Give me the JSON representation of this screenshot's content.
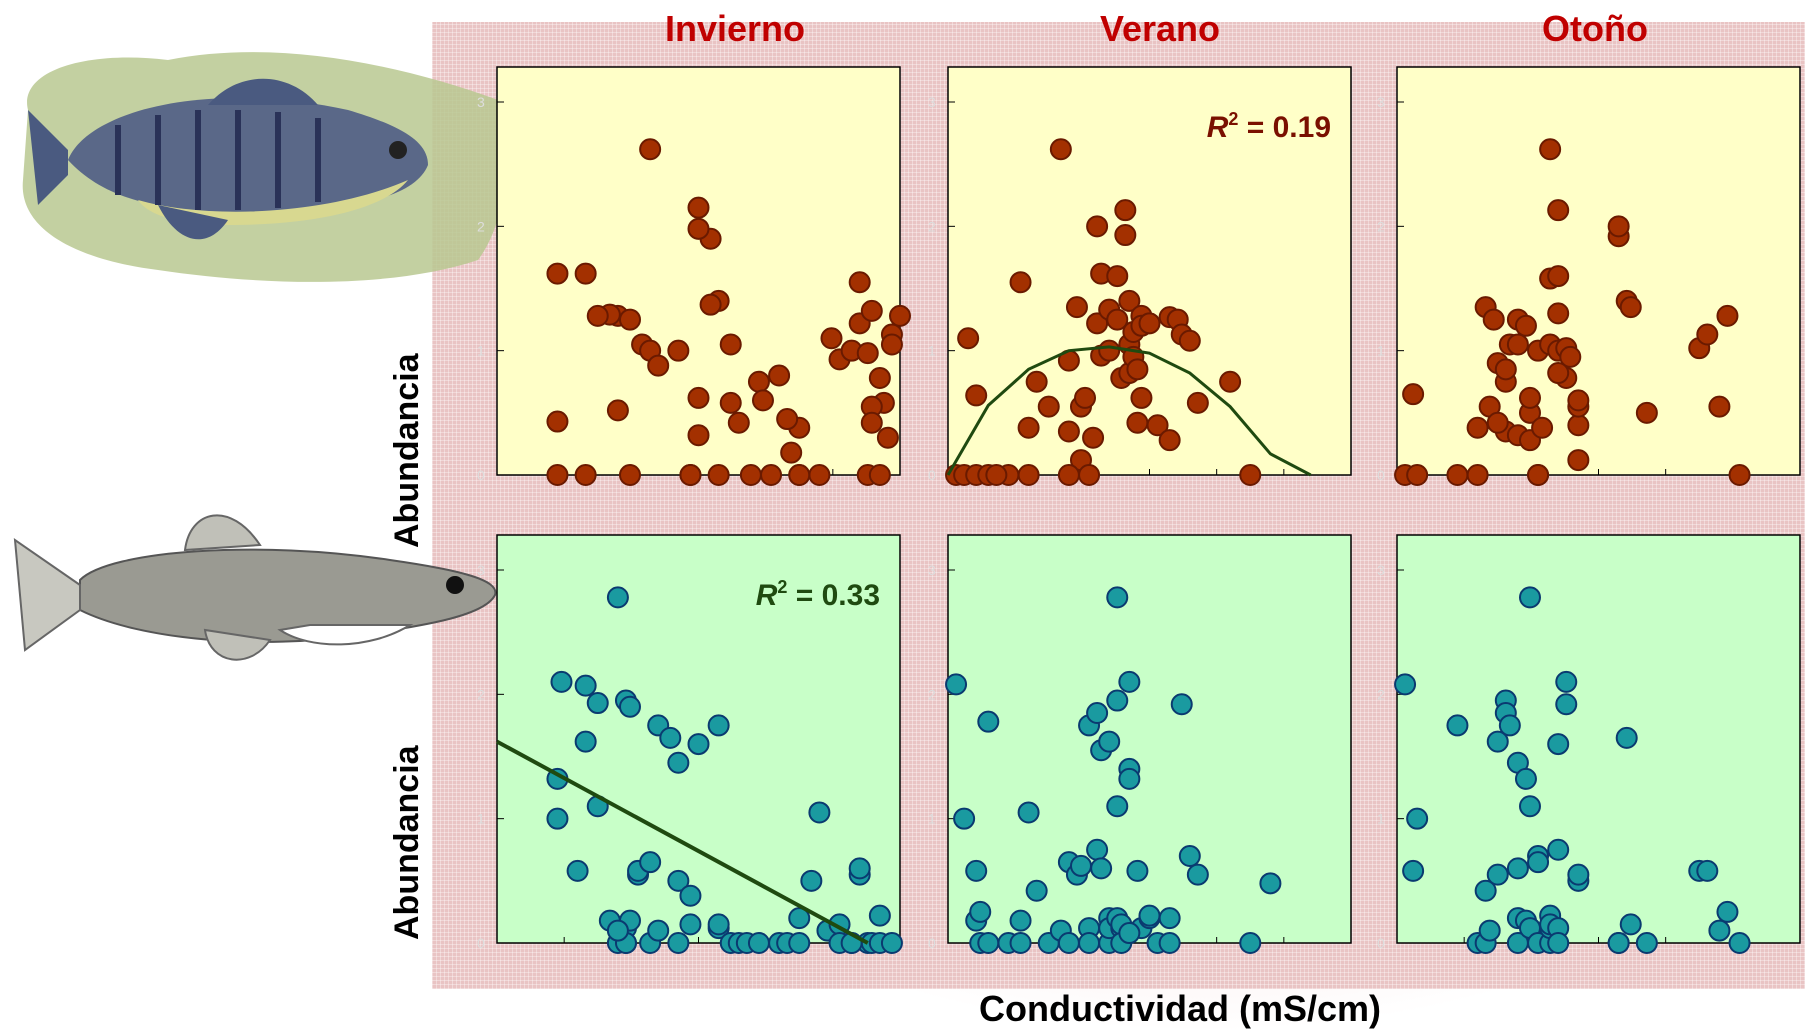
{
  "seasons": [
    "Invierno",
    "Verano",
    "Otoño"
  ],
  "y_label": "Abundancia",
  "x_label": "Conductividad (mS/cm)",
  "colors": {
    "season_title": "#c00000",
    "top_panel_bg": "#ffffc8",
    "bottom_panel_bg": "#c8ffc8",
    "top_points": "#a33000",
    "bottom_points": "#1a9aa0",
    "fit_line": "#1f4a10",
    "top_r2_text": "#7a1000",
    "bottom_r2_text": "#1f4a10"
  },
  "chart_data": [
    {
      "type": "scatter",
      "row": "top",
      "season": "Invierno",
      "ylim": [
        0,
        3
      ],
      "yticks": [
        "0",
        "1",
        "2",
        "3"
      ],
      "x": [
        0.15,
        0.15,
        0.22,
        0.22,
        0.3,
        0.15,
        0.3,
        0.28,
        0.25,
        0.33,
        0.36,
        0.33,
        0.38,
        0.4,
        0.45,
        0.38,
        0.53,
        0.48,
        0.48,
        0.55,
        0.5,
        0.5,
        0.53,
        0.58,
        0.5,
        0.55,
        0.5,
        0.6,
        0.65,
        0.7,
        0.63,
        0.66,
        0.58,
        0.68,
        0.8,
        0.75,
        0.72,
        0.75,
        0.73,
        0.85,
        0.88,
        0.83,
        0.9,
        0.9,
        0.93,
        0.92,
        0.95,
        0.96,
        0.93,
        0.93,
        0.92,
        1.0,
        0.98,
        0.98,
        0.97,
        0.75,
        0.95
      ],
      "y": [
        1.62,
        0.0,
        0.0,
        1.62,
        1.28,
        0.43,
        0.52,
        1.29,
        1.28,
        1.25,
        1.05,
        0.0,
        1.0,
        0.88,
        1.0,
        2.62,
        1.9,
        0.0,
        0.0,
        1.4,
        2.15,
        1.98,
        1.37,
        1.05,
        0.32,
        0.0,
        0.62,
        0.42,
        0.75,
        0.8,
        0.0,
        0.6,
        0.58,
        0.0,
        0.0,
        0.38,
        0.45,
        0.0,
        0.18,
        0.93,
        1.0,
        1.1,
        1.22,
        1.55,
        1.32,
        0.98,
        0.78,
        0.58,
        0.55,
        0.42,
        0.0,
        1.28,
        1.13,
        1.05,
        0.3,
        0.0,
        0.0
      ]
    },
    {
      "type": "scatter",
      "row": "top",
      "season": "Verano",
      "ylim": [
        0,
        3
      ],
      "yticks": [
        "0",
        "1",
        "2",
        "3"
      ],
      "annotation": "R2 = 0.19",
      "x": [
        0.02,
        0.04,
        0.05,
        0.07,
        0.07,
        0.1,
        0.2,
        0.18,
        0.22,
        0.2,
        0.25,
        0.28,
        0.3,
        0.3,
        0.32,
        0.33,
        0.33,
        0.34,
        0.36,
        0.37,
        0.37,
        0.38,
        0.38,
        0.4,
        0.4,
        0.42,
        0.42,
        0.43,
        0.44,
        0.44,
        0.45,
        0.45,
        0.45,
        0.46,
        0.46,
        0.47,
        0.47,
        0.48,
        0.48,
        0.48,
        0.5,
        0.52,
        0.55,
        0.55,
        0.57,
        0.58,
        0.6,
        0.62,
        0.7,
        0.75,
        0.3,
        0.35,
        0.15,
        0.12
      ],
      "y": [
        0.0,
        0.0,
        1.1,
        0.0,
        0.64,
        0.0,
        0.0,
        1.55,
        0.75,
        0.38,
        0.55,
        2.62,
        0.92,
        0.35,
        1.35,
        0.12,
        0.55,
        0.62,
        0.3,
        2.0,
        1.22,
        1.62,
        0.96,
        1.33,
        1.0,
        1.6,
        1.25,
        0.78,
        2.13,
        1.93,
        1.4,
        1.05,
        0.82,
        1.15,
        0.95,
        0.42,
        0.85,
        1.28,
        1.2,
        0.62,
        1.22,
        0.4,
        1.27,
        0.28,
        1.25,
        1.13,
        1.08,
        0.58,
        0.75,
        0.0,
        0.0,
        0.0,
        0.0,
        0.0
      ],
      "fit_curve": {
        "x": [
          0.0,
          0.1,
          0.2,
          0.3,
          0.4,
          0.5,
          0.6,
          0.7,
          0.8,
          0.9
        ],
        "y": [
          0.0,
          0.56,
          0.85,
          1.0,
          1.03,
          0.98,
          0.82,
          0.55,
          0.17,
          -0.1
        ]
      }
    },
    {
      "type": "scatter",
      "row": "top",
      "season": "Otoño",
      "ylim": [
        0,
        3
      ],
      "yticks": [
        "0",
        "1",
        "2",
        "3"
      ],
      "x": [
        0.02,
        0.05,
        0.04,
        0.15,
        0.2,
        0.2,
        0.23,
        0.25,
        0.22,
        0.24,
        0.27,
        0.27,
        0.27,
        0.28,
        0.3,
        0.3,
        0.3,
        0.32,
        0.35,
        0.35,
        0.33,
        0.33,
        0.33,
        0.35,
        0.38,
        0.38,
        0.38,
        0.4,
        0.4,
        0.4,
        0.4,
        0.42,
        0.42,
        0.45,
        0.45,
        0.45,
        0.43,
        0.45,
        0.55,
        0.55,
        0.57,
        0.58,
        0.62,
        0.75,
        0.77,
        0.85,
        0.8,
        0.82,
        0.25,
        0.4,
        0.36
      ],
      "y": [
        0.0,
        0.0,
        0.65,
        0.0,
        0.0,
        0.38,
        0.55,
        0.9,
        1.35,
        1.25,
        0.35,
        0.75,
        0.85,
        1.05,
        0.32,
        1.05,
        1.25,
        1.2,
        0.0,
        0.0,
        0.28,
        0.5,
        0.62,
        1.0,
        2.62,
        1.05,
        1.58,
        2.13,
        1.6,
        1.3,
        1.0,
        1.02,
        0.78,
        0.12,
        0.4,
        0.55,
        0.95,
        0.6,
        1.92,
        2.0,
        1.4,
        1.35,
        0.5,
        1.02,
        1.13,
        0.0,
        0.55,
        1.28,
        0.42,
        0.82,
        0.38
      ]
    },
    {
      "type": "scatter",
      "row": "bottom",
      "season": "Invierno",
      "ylim": [
        0,
        3
      ],
      "yticks": [
        "0",
        "1",
        "2",
        "3"
      ],
      "annotation": "R2 = 0.33",
      "x": [
        0.15,
        0.15,
        0.16,
        0.2,
        0.22,
        0.22,
        0.25,
        0.25,
        0.28,
        0.3,
        0.32,
        0.32,
        0.32,
        0.33,
        0.33,
        0.35,
        0.35,
        0.38,
        0.38,
        0.4,
        0.4,
        0.43,
        0.45,
        0.45,
        0.48,
        0.48,
        0.5,
        0.55,
        0.55,
        0.58,
        0.6,
        0.62,
        0.65,
        0.7,
        0.72,
        0.75,
        0.78,
        0.8,
        0.82,
        0.85,
        0.88,
        0.9,
        0.9,
        0.92,
        0.95,
        0.93,
        0.95,
        0.98,
        0.75,
        0.85,
        0.3,
        0.88,
        0.45,
        0.55,
        0.32,
        0.3
      ],
      "y": [
        1.0,
        1.32,
        2.1,
        0.58,
        2.07,
        1.62,
        1.1,
        1.93,
        0.18,
        2.78,
        1.95,
        0.12,
        0.0,
        0.18,
        1.9,
        0.55,
        0.58,
        0.65,
        0.0,
        0.1,
        1.75,
        1.65,
        1.45,
        0.5,
        0.38,
        0.15,
        1.6,
        0.12,
        0.15,
        0.0,
        0.0,
        0.0,
        0.0,
        0.0,
        0.0,
        0.2,
        0.5,
        1.05,
        0.1,
        0.15,
        0.0,
        0.55,
        0.6,
        0.0,
        0.22,
        0.0,
        0.0,
        0.0,
        0.0,
        0.0,
        0.0,
        0.0,
        0.0,
        1.75,
        0.0,
        0.1
      ],
      "fit_line": {
        "x": [
          0.0,
          0.92
        ],
        "y": [
          1.62,
          0.0
        ]
      }
    },
    {
      "type": "scatter",
      "row": "bottom",
      "season": "Verano",
      "ylim": [
        0,
        3
      ],
      "yticks": [
        "0",
        "1",
        "2",
        "3"
      ],
      "x": [
        0.02,
        0.04,
        0.07,
        0.07,
        0.08,
        0.08,
        0.1,
        0.1,
        0.15,
        0.18,
        0.18,
        0.2,
        0.22,
        0.25,
        0.28,
        0.3,
        0.3,
        0.32,
        0.33,
        0.35,
        0.35,
        0.35,
        0.37,
        0.37,
        0.38,
        0.38,
        0.4,
        0.4,
        0.4,
        0.4,
        0.42,
        0.42,
        0.42,
        0.42,
        0.43,
        0.43,
        0.43,
        0.45,
        0.45,
        0.45,
        0.47,
        0.48,
        0.5,
        0.52,
        0.55,
        0.55,
        0.58,
        0.6,
        0.62,
        0.75,
        0.8,
        0.45,
        0.5
      ],
      "y": [
        2.08,
        1.0,
        0.58,
        0.18,
        0.25,
        0.0,
        1.78,
        0.0,
        0.0,
        0.18,
        0.0,
        1.05,
        0.42,
        0.0,
        0.1,
        0.0,
        0.65,
        0.55,
        0.62,
        1.75,
        0.12,
        0.0,
        1.85,
        0.75,
        1.55,
        0.6,
        1.62,
        0.2,
        0.0,
        0.12,
        2.78,
        1.95,
        1.1,
        0.2,
        0.12,
        0.15,
        0.0,
        2.1,
        1.4,
        1.32,
        0.58,
        0.12,
        0.2,
        0.0,
        0.0,
        0.2,
        1.92,
        0.7,
        0.55,
        0.0,
        0.48,
        0.08,
        0.22
      ]
    },
    {
      "type": "scatter",
      "row": "bottom",
      "season": "Otoño",
      "ylim": [
        0,
        3
      ],
      "yticks": [
        "0",
        "1",
        "2",
        "3"
      ],
      "x": [
        0.02,
        0.05,
        0.04,
        0.15,
        0.2,
        0.22,
        0.22,
        0.23,
        0.25,
        0.25,
        0.27,
        0.27,
        0.28,
        0.3,
        0.3,
        0.3,
        0.3,
        0.32,
        0.32,
        0.33,
        0.33,
        0.33,
        0.35,
        0.35,
        0.35,
        0.38,
        0.38,
        0.38,
        0.38,
        0.4,
        0.4,
        0.4,
        0.4,
        0.42,
        0.42,
        0.45,
        0.45,
        0.55,
        0.55,
        0.57,
        0.58,
        0.62,
        0.75,
        0.77,
        0.85,
        0.8,
        0.82
      ],
      "y": [
        2.08,
        1.0,
        0.58,
        1.75,
        0.0,
        0.0,
        0.42,
        0.1,
        1.62,
        0.55,
        1.95,
        1.85,
        1.75,
        0.0,
        0.2,
        1.45,
        0.6,
        1.32,
        0.18,
        2.78,
        1.1,
        0.12,
        0.7,
        0.65,
        0.0,
        0.22,
        0.0,
        0.12,
        0.15,
        1.6,
        0.12,
        0.0,
        0.75,
        2.1,
        1.92,
        0.5,
        0.55,
        0.0,
        0.0,
        1.65,
        0.15,
        0.0,
        0.58,
        0.58,
        0.0,
        0.1,
        0.25
      ]
    }
  ]
}
